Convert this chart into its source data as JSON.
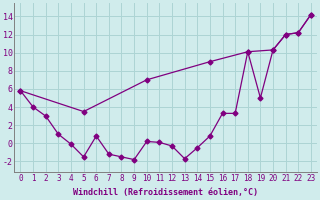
{
  "xlabel": "Windchill (Refroidissement éolien,°C)",
  "line1_x": [
    0,
    1,
    2,
    3,
    4,
    5,
    6,
    7,
    8,
    9,
    10,
    11,
    12,
    13,
    14,
    15,
    16,
    17,
    18,
    19,
    20,
    21,
    22,
    23
  ],
  "line1_y": [
    5.8,
    4.0,
    3.0,
    1.0,
    -0.1,
    -1.5,
    0.8,
    -1.2,
    -1.5,
    -1.8,
    0.2,
    0.1,
    -0.3,
    -1.7,
    -0.5,
    0.8,
    3.3,
    3.3,
    10.1,
    5.0,
    10.3,
    12.0,
    12.2,
    14.2
  ],
  "line2_x": [
    0,
    5,
    10,
    15,
    18,
    20,
    21,
    22,
    23
  ],
  "line2_y": [
    5.8,
    3.5,
    7.0,
    9.0,
    10.1,
    10.3,
    12.0,
    12.2,
    14.2
  ],
  "line_color": "#800080",
  "bg_color": "#d0ecec",
  "grid_color": "#acd4d4",
  "marker": "D",
  "markersize": 2.5,
  "linewidth": 0.9,
  "xlim": [
    -0.5,
    23.5
  ],
  "ylim": [
    -3.2,
    15.5
  ],
  "yticks": [
    -2,
    0,
    2,
    4,
    6,
    8,
    10,
    12,
    14
  ],
  "xticks": [
    0,
    1,
    2,
    3,
    4,
    5,
    6,
    7,
    8,
    9,
    10,
    11,
    12,
    13,
    14,
    15,
    16,
    17,
    18,
    19,
    20,
    21,
    22,
    23
  ],
  "tick_fontsize": 5.5,
  "xlabel_fontsize": 6.0
}
